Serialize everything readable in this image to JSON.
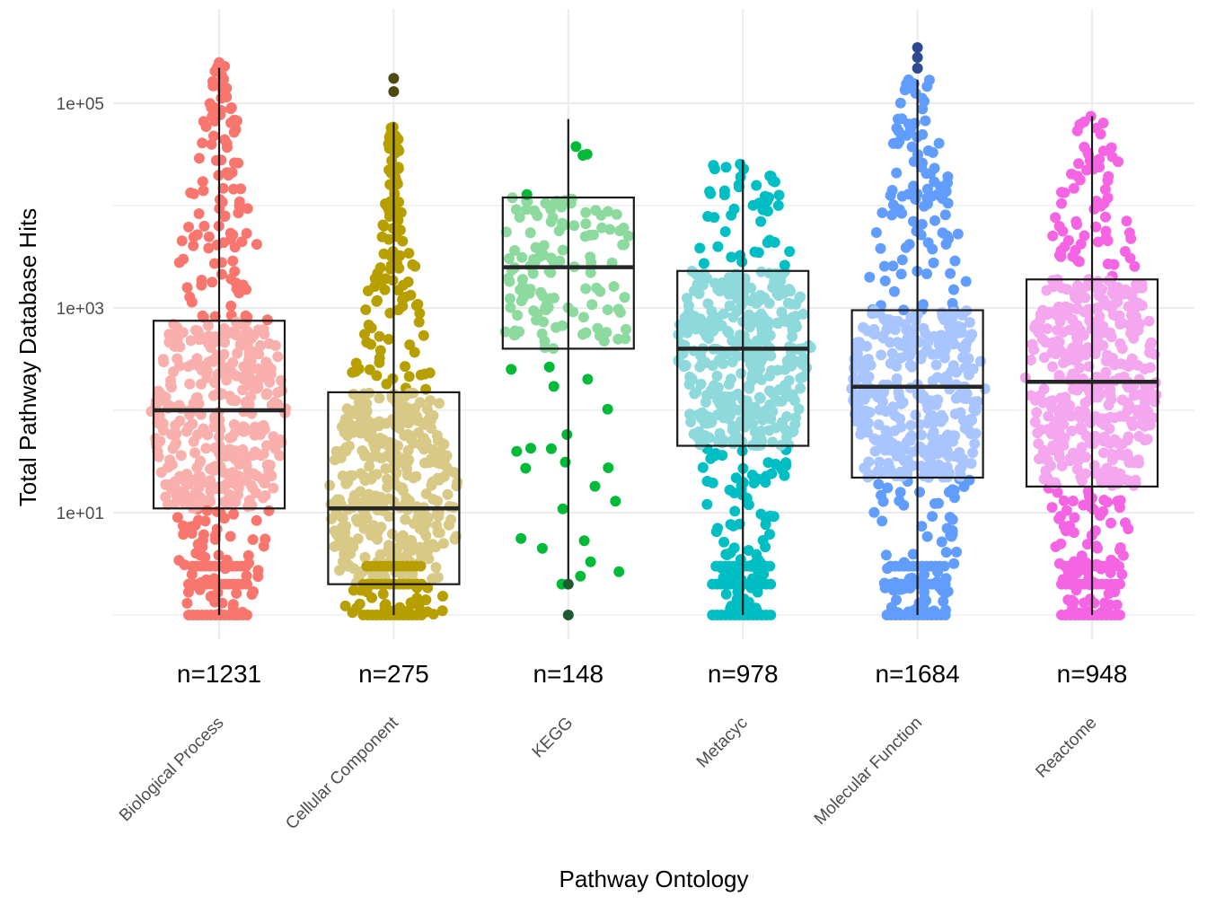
{
  "chart_data": {
    "type": "box",
    "xlabel": "Pathway Ontology",
    "ylabel": "Total Pathway Database Hits",
    "y_scale": "log10",
    "ylim": [
      1,
      400000
    ],
    "y_ticks": [
      10,
      1000,
      100000
    ],
    "y_tick_labels": [
      "1e+01",
      "1e+03",
      "1e+05"
    ],
    "grid": true,
    "legend": "none",
    "overlay": "beeswarm points",
    "categories": [
      "Biological Process",
      "Cellular Component",
      "KEGG",
      "Metacyc",
      "Molecular Function",
      "Reactome"
    ],
    "counts": [
      "n=1231",
      "n=275",
      "n=148",
      "n=978",
      "n=1684",
      "n=948"
    ],
    "colors": [
      "#F8766D",
      "#B79F00",
      "#00BA38",
      "#00BFC4",
      "#619CFF",
      "#F564E3"
    ],
    "box_fill": [
      "#F9AFAC",
      "#D8CA86",
      "#8CDA9E",
      "#8DD9DC",
      "#A9C5FF",
      "#F4A6EE"
    ],
    "outlier_colors": [
      "#F8766D",
      "#4F4A10",
      "#1E5A30",
      "#00BFC4",
      "#2D4A8F",
      "#F564E3"
    ],
    "series": [
      {
        "min": 1,
        "q1": 11,
        "median": 100,
        "q3": 750,
        "upper_whisker": 230000,
        "outliers": [
          250000
        ]
      },
      {
        "min": 1,
        "q1": 2,
        "median": 11,
        "q3": 150,
        "upper_whisker": 65000,
        "outliers": [
          130000,
          175000
        ]
      },
      {
        "min": 2,
        "q1": 400,
        "median": 2500,
        "q3": 12000,
        "upper_whisker": 70000,
        "outliers": [
          1,
          2
        ]
      },
      {
        "min": 1,
        "q1": 45,
        "median": 400,
        "q3": 2300,
        "upper_whisker": 28000,
        "outliers": []
      },
      {
        "min": 1,
        "q1": 22,
        "median": 170,
        "q3": 950,
        "upper_whisker": 170000,
        "outliers": [
          220000,
          280000,
          350000
        ]
      },
      {
        "min": 1,
        "q1": 18,
        "median": 190,
        "q3": 1900,
        "upper_whisker": 75000,
        "outliers": []
      }
    ]
  }
}
